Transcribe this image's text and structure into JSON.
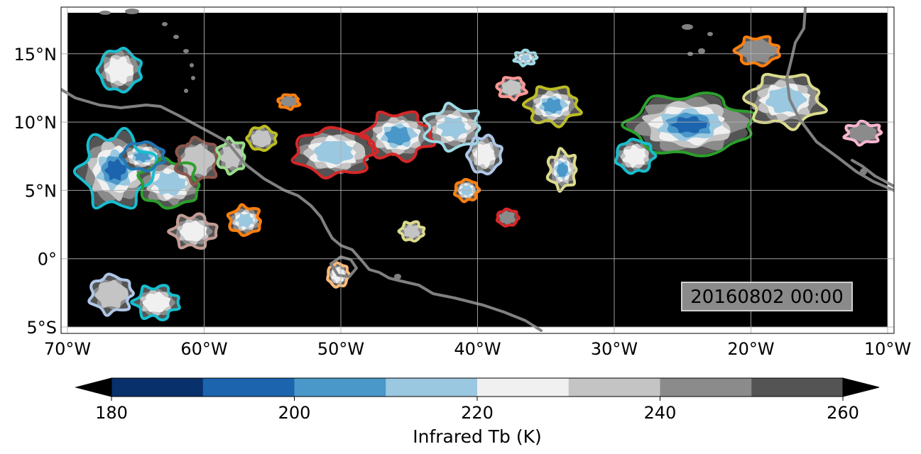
{
  "map": {
    "map_type": "infrared brightness temperature map with tracked cloud-cluster contours",
    "region": {
      "lon_range": [
        -70,
        -10
      ],
      "lat_range": [
        -5,
        18
      ]
    },
    "lon_ticks": [
      {
        "value": -70,
        "label": "70°W"
      },
      {
        "value": -60,
        "label": "60°W"
      },
      {
        "value": -50,
        "label": "50°W"
      },
      {
        "value": -40,
        "label": "40°W"
      },
      {
        "value": -30,
        "label": "30°W"
      },
      {
        "value": -20,
        "label": "20°W"
      },
      {
        "value": -10,
        "label": "10°W"
      }
    ],
    "lat_ticks": [
      {
        "value": 15,
        "label": "15°N"
      },
      {
        "value": 10,
        "label": "10°N"
      },
      {
        "value": 5,
        "label": "5°N"
      },
      {
        "value": 0,
        "label": "0°"
      },
      {
        "value": -5,
        "label": "5°S"
      }
    ],
    "gridlines": true,
    "background_color": "#000000",
    "coastline_color": "#808080",
    "timestamp": "20160802 00:00",
    "timestamp_placement": "bottom-right"
  },
  "colorbar": {
    "label": "Infrared Tb (K)",
    "boundaries": [
      180,
      190,
      200,
      210,
      220,
      230,
      240,
      250,
      260
    ],
    "colors": [
      "#08306b",
      "#1c64ad",
      "#4a97c9",
      "#9ac8e0",
      "#f0f0f0",
      "#c4c4c4",
      "#8b8b8b",
      "#545454"
    ],
    "under_color": "#000000",
    "over_color": "#000000",
    "ticks": [
      180,
      200,
      220,
      240,
      260
    ],
    "tick_labels": [
      "180",
      "200",
      "220",
      "240",
      "260"
    ],
    "extend": "both",
    "orientation": "horizontal"
  },
  "cloud_clusters": [
    {
      "center": [
        -66.5,
        6.5
      ],
      "radius_deg": [
        3.0,
        3.2
      ],
      "min_tb": 195,
      "outline": "#17becf"
    },
    {
      "center": [
        -62.5,
        5.5
      ],
      "radius_deg": [
        2.6,
        2.0
      ],
      "min_tb": 208,
      "outline": "#2ca02c"
    },
    {
      "center": [
        -64.5,
        7.5
      ],
      "radius_deg": [
        1.8,
        1.2
      ],
      "min_tb": 198,
      "outline": "#1f77b4"
    },
    {
      "center": [
        -60.5,
        7.2
      ],
      "radius_deg": [
        1.8,
        1.8
      ],
      "min_tb": 228,
      "outline": "#8c564b"
    },
    {
      "center": [
        -60.8,
        2.0
      ],
      "radius_deg": [
        1.8,
        1.4
      ],
      "min_tb": 218,
      "outline": "#c49c94"
    },
    {
      "center": [
        -57.0,
        2.8
      ],
      "radius_deg": [
        1.4,
        1.2
      ],
      "min_tb": 212,
      "outline": "#ff7f0e"
    },
    {
      "center": [
        -66.2,
        13.8
      ],
      "radius_deg": [
        1.8,
        1.8
      ],
      "min_tb": 225,
      "outline": "#17becf"
    },
    {
      "center": [
        -66.8,
        -2.6
      ],
      "radius_deg": [
        1.8,
        1.6
      ],
      "min_tb": 226,
      "outline": "#aec7e8"
    },
    {
      "center": [
        -63.5,
        -3.2
      ],
      "radius_deg": [
        1.8,
        1.4
      ],
      "min_tb": 222,
      "outline": "#17becf"
    },
    {
      "center": [
        -58.0,
        7.5
      ],
      "radius_deg": [
        1.2,
        1.4
      ],
      "min_tb": 230,
      "outline": "#98df8a"
    },
    {
      "center": [
        -55.8,
        8.8
      ],
      "radius_deg": [
        1.2,
        1.0
      ],
      "min_tb": 232,
      "outline": "#bcbd22"
    },
    {
      "center": [
        -50.5,
        7.8
      ],
      "radius_deg": [
        3.4,
        2.0
      ],
      "min_tb": 212,
      "outline": "#d62728"
    },
    {
      "center": [
        -45.8,
        9.0
      ],
      "radius_deg": [
        2.8,
        2.0
      ],
      "min_tb": 200,
      "outline": "#d62728"
    },
    {
      "center": [
        -41.8,
        9.6
      ],
      "radius_deg": [
        2.4,
        1.8
      ],
      "min_tb": 207,
      "outline": "#9edae5"
    },
    {
      "center": [
        -39.5,
        7.6
      ],
      "radius_deg": [
        1.4,
        1.6
      ],
      "min_tb": 218,
      "outline": "#aec7e8"
    },
    {
      "center": [
        -40.8,
        5.0
      ],
      "radius_deg": [
        1.0,
        0.9
      ],
      "min_tb": 208,
      "outline": "#ff7f0e"
    },
    {
      "center": [
        -34.5,
        11.2
      ],
      "radius_deg": [
        2.2,
        1.6
      ],
      "min_tb": 198,
      "outline": "#bcbd22"
    },
    {
      "center": [
        -33.8,
        6.5
      ],
      "radius_deg": [
        1.2,
        1.6
      ],
      "min_tb": 205,
      "outline": "#dbdb8d"
    },
    {
      "center": [
        -24.5,
        9.8
      ],
      "radius_deg": [
        5.2,
        2.6
      ],
      "min_tb": 195,
      "outline": "#2ca02c"
    },
    {
      "center": [
        -28.5,
        7.5
      ],
      "radius_deg": [
        1.6,
        1.4
      ],
      "min_tb": 218,
      "outline": "#17becf"
    },
    {
      "center": [
        -17.5,
        11.6
      ],
      "radius_deg": [
        3.2,
        2.2
      ],
      "min_tb": 206,
      "outline": "#dbdb8d"
    },
    {
      "center": [
        -11.8,
        9.2
      ],
      "radius_deg": [
        1.5,
        0.9
      ],
      "min_tb": 236,
      "outline": "#f7b6d2"
    },
    {
      "center": [
        -44.8,
        2.0
      ],
      "radius_deg": [
        1.0,
        0.8
      ],
      "min_tb": 232,
      "outline": "#dbdb8d"
    },
    {
      "center": [
        -50.2,
        -1.2
      ],
      "radius_deg": [
        0.9,
        1.0
      ],
      "min_tb": 222,
      "outline": "#ffbb78"
    },
    {
      "center": [
        -37.5,
        12.5
      ],
      "radius_deg": [
        1.2,
        0.9
      ],
      "min_tb": 232,
      "outline": "#ff9896"
    },
    {
      "center": [
        -36.5,
        14.7
      ],
      "radius_deg": [
        0.9,
        0.6
      ],
      "min_tb": 215,
      "outline": "#9edae5"
    },
    {
      "center": [
        -19.5,
        15.2
      ],
      "radius_deg": [
        1.8,
        1.2
      ],
      "min_tb": 236,
      "outline": "#ff7f0e"
    },
    {
      "center": [
        -37.8,
        3.0
      ],
      "radius_deg": [
        0.9,
        0.7
      ],
      "min_tb": 236,
      "outline": "#d62728"
    },
    {
      "center": [
        -53.8,
        11.5
      ],
      "radius_deg": [
        0.9,
        0.6
      ],
      "min_tb": 236,
      "outline": "#ff7f0e"
    }
  ]
}
